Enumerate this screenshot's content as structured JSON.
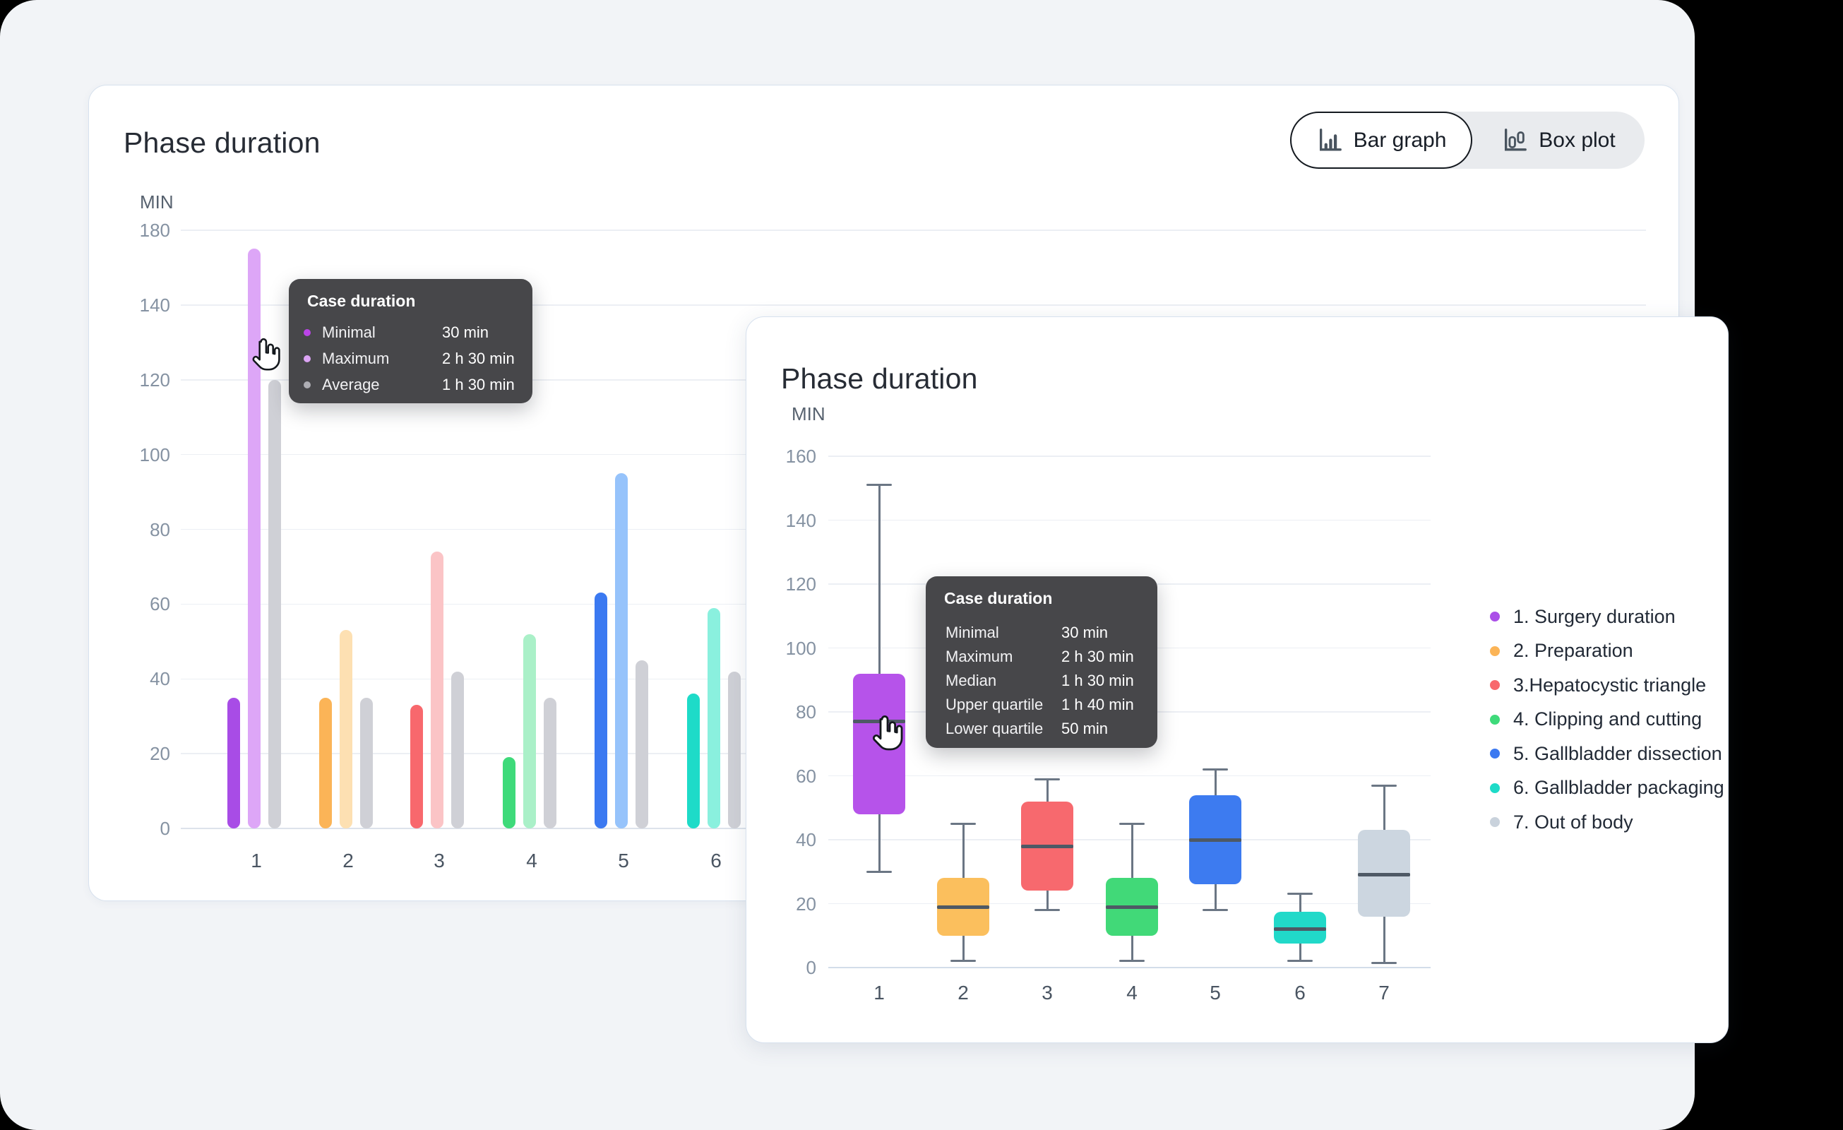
{
  "window": {
    "background": "#000000",
    "panel_background": "#f2f4f7"
  },
  "bar_card": {
    "title": "Phase duration",
    "axis_unit": "MIN",
    "toolbar": {
      "bar_graph": "Bar graph",
      "box_plot": "Box plot"
    },
    "tooltip": {
      "title": "Case duration",
      "rows": [
        {
          "label": "Minimal",
          "value": "30 min",
          "dot": "#bb44e8"
        },
        {
          "label": "Maximum",
          "value": "2 h 30 min",
          "dot": "#dca4f5"
        },
        {
          "label": "Average",
          "value": "1 h 30 min",
          "dot": "#aeaeb4"
        }
      ]
    }
  },
  "box_card": {
    "title": "Phase duration",
    "axis_unit": "MIN",
    "tooltip": {
      "title": "Case duration",
      "rows": [
        {
          "label": "Minimal",
          "value": "30 min"
        },
        {
          "label": "Maximum",
          "value": "2 h 30 min"
        },
        {
          "label": "Median",
          "value": "1 h 30 min"
        },
        {
          "label": "Upper quartile",
          "value": "1 h 40 min"
        },
        {
          "label": "Lower quartile",
          "value": "50 min"
        }
      ]
    }
  },
  "legend": {
    "items": [
      {
        "label": "1. Surgery duration",
        "color": "#ab4fe8"
      },
      {
        "label": "2. Preparation",
        "color": "#fbb457"
      },
      {
        "label": "3.Hepatocystic triangle",
        "color": "#f8686d"
      },
      {
        "label": "4. Clipping and cutting",
        "color": "#3eda7a"
      },
      {
        "label": "5. Gallbladder dissection",
        "color": "#3b79f1"
      },
      {
        "label": "6. Gallbladder packaging",
        "color": "#1edbc8"
      },
      {
        "label": "7. Out of body",
        "color": "#c9d2dc"
      }
    ]
  },
  "chart_data": [
    {
      "type": "bar",
      "title": "Phase duration",
      "ylabel": "MIN",
      "y_tick_labels": [
        "180",
        "140",
        "120",
        "100",
        "80",
        "60",
        "40",
        "20",
        "0"
      ],
      "y_scale_max": 160,
      "grid": true,
      "categories": [
        "1",
        "2",
        "3",
        "4",
        "5",
        "6"
      ],
      "series": [
        {
          "name": "minimal",
          "values": [
            35,
            35,
            33,
            19,
            63,
            36
          ],
          "colors": [
            "#a84ce6",
            "#fbb457",
            "#f8686d",
            "#3eda7a",
            "#3b79f1",
            "#1edbc8"
          ]
        },
        {
          "name": "maximum",
          "values": [
            155,
            53,
            74,
            52,
            95,
            59
          ],
          "colors": [
            "#dda6f7",
            "#fde0b2",
            "#fbc4c6",
            "#aaf0c8",
            "#96c3fb",
            "#8af0de"
          ]
        },
        {
          "name": "average",
          "values": [
            120,
            35,
            42,
            35,
            45,
            42
          ],
          "colors": [
            "#cfd0d6",
            "#cfd0d6",
            "#cfd0d6",
            "#cfd0d6",
            "#cfd0d6",
            "#cfd0d6"
          ]
        }
      ]
    },
    {
      "type": "box",
      "title": "Phase duration",
      "ylabel": "MIN",
      "y_tick_labels": [
        "160",
        "140",
        "120",
        "100",
        "80",
        "60",
        "40",
        "20",
        "0"
      ],
      "ylim": [
        0,
        160
      ],
      "grid": true,
      "categories": [
        "1",
        "2",
        "3",
        "4",
        "5",
        "6",
        "7"
      ],
      "boxes": [
        {
          "min": 30,
          "q1": 48,
          "median": 77,
          "q3": 92,
          "max": 151,
          "color": "#b653ea"
        },
        {
          "min": 2,
          "q1": 10,
          "median": 19,
          "q3": 28,
          "max": 45,
          "color": "#fbbf5d"
        },
        {
          "min": 18,
          "q1": 24,
          "median": 38,
          "q3": 52,
          "max": 59,
          "color": "#f7696e"
        },
        {
          "min": 2,
          "q1": 10,
          "median": 19,
          "q3": 28,
          "max": 45,
          "color": "#41d978"
        },
        {
          "min": 18,
          "q1": 26,
          "median": 40,
          "q3": 54,
          "max": 62,
          "color": "#3d7bf0"
        },
        {
          "min": 2,
          "q1": 7.5,
          "median": 12,
          "q3": 17.5,
          "max": 23,
          "color": "#21d9c9"
        },
        {
          "min": 1.5,
          "q1": 16,
          "median": 29,
          "q3": 43,
          "max": 57,
          "color": "#ccd6e0"
        }
      ]
    }
  ]
}
